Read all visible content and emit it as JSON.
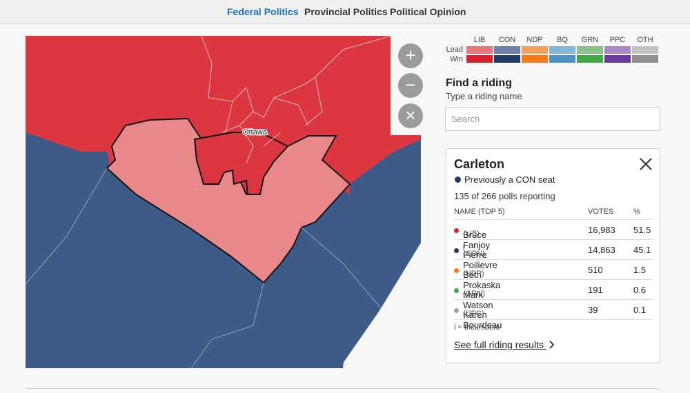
{
  "nav": {
    "tabs": [
      {
        "label": "Federal Politics",
        "active": true
      },
      {
        "label": "Provincial Politics",
        "active": false
      },
      {
        "label": "Political Opinion",
        "active": false
      }
    ]
  },
  "map": {
    "city_label": "Ottawa",
    "colors": {
      "lib_win": "#dc3740",
      "lib_lead": "#e8888a",
      "con_win": "#3e5a87",
      "background": "#f7f7f7"
    },
    "controls": {
      "zoom_in": "+",
      "zoom_out": "−",
      "reset": "×"
    }
  },
  "legend": {
    "parties": [
      "LIB",
      "CON",
      "NDP",
      "BQ",
      "GRN",
      "PPC",
      "OTH"
    ],
    "lead_label": "Lead",
    "win_label": "Win",
    "lead_colors": [
      "#e5777e",
      "#6e7fa3",
      "#f4a35e",
      "#86b7d6",
      "#8cc08a",
      "#a98ac7",
      "#c3c3c3"
    ],
    "win_colors": [
      "#d7222c",
      "#213a66",
      "#f27c1a",
      "#4f93c4",
      "#46a548",
      "#6a3b9b",
      "#909090"
    ]
  },
  "find": {
    "title": "Find a riding",
    "subtitle": "Type a riding name",
    "placeholder": "Search"
  },
  "riding": {
    "name": "Carleton",
    "previous": "Previously a CON seat",
    "previous_color": "#213a66",
    "polls": "135 of 266 polls reporting",
    "columns": {
      "name": "NAME (TOP 5)",
      "votes": "VOTES",
      "pct": "%"
    },
    "candidates": [
      {
        "name": "Bruce Fanjoy",
        "party": "(LIB)",
        "incumbent": "",
        "votes": "16,983",
        "pct": "51.5",
        "color": "#d7222c"
      },
      {
        "name": "Pierre Poilievre",
        "party": "(CON)",
        "incumbent": "i",
        "votes": "14,863",
        "pct": "45.1",
        "color": "#213a66"
      },
      {
        "name": "Beth Prokaska",
        "party": "(NDP)",
        "incumbent": "",
        "votes": "510",
        "pct": "1.5",
        "color": "#f27c1a"
      },
      {
        "name": "Mark Watson",
        "party": "(GRN)",
        "incumbent": "",
        "votes": "191",
        "pct": "0.6",
        "color": "#46a548"
      },
      {
        "name": "Karen Bourdeau",
        "party": "(UPC)",
        "incumbent": "",
        "votes": "39",
        "pct": "0.1",
        "color": "#a0a0a0"
      }
    ],
    "incumbent_note": "i = Incumbent",
    "full_results": "See full riding results"
  }
}
